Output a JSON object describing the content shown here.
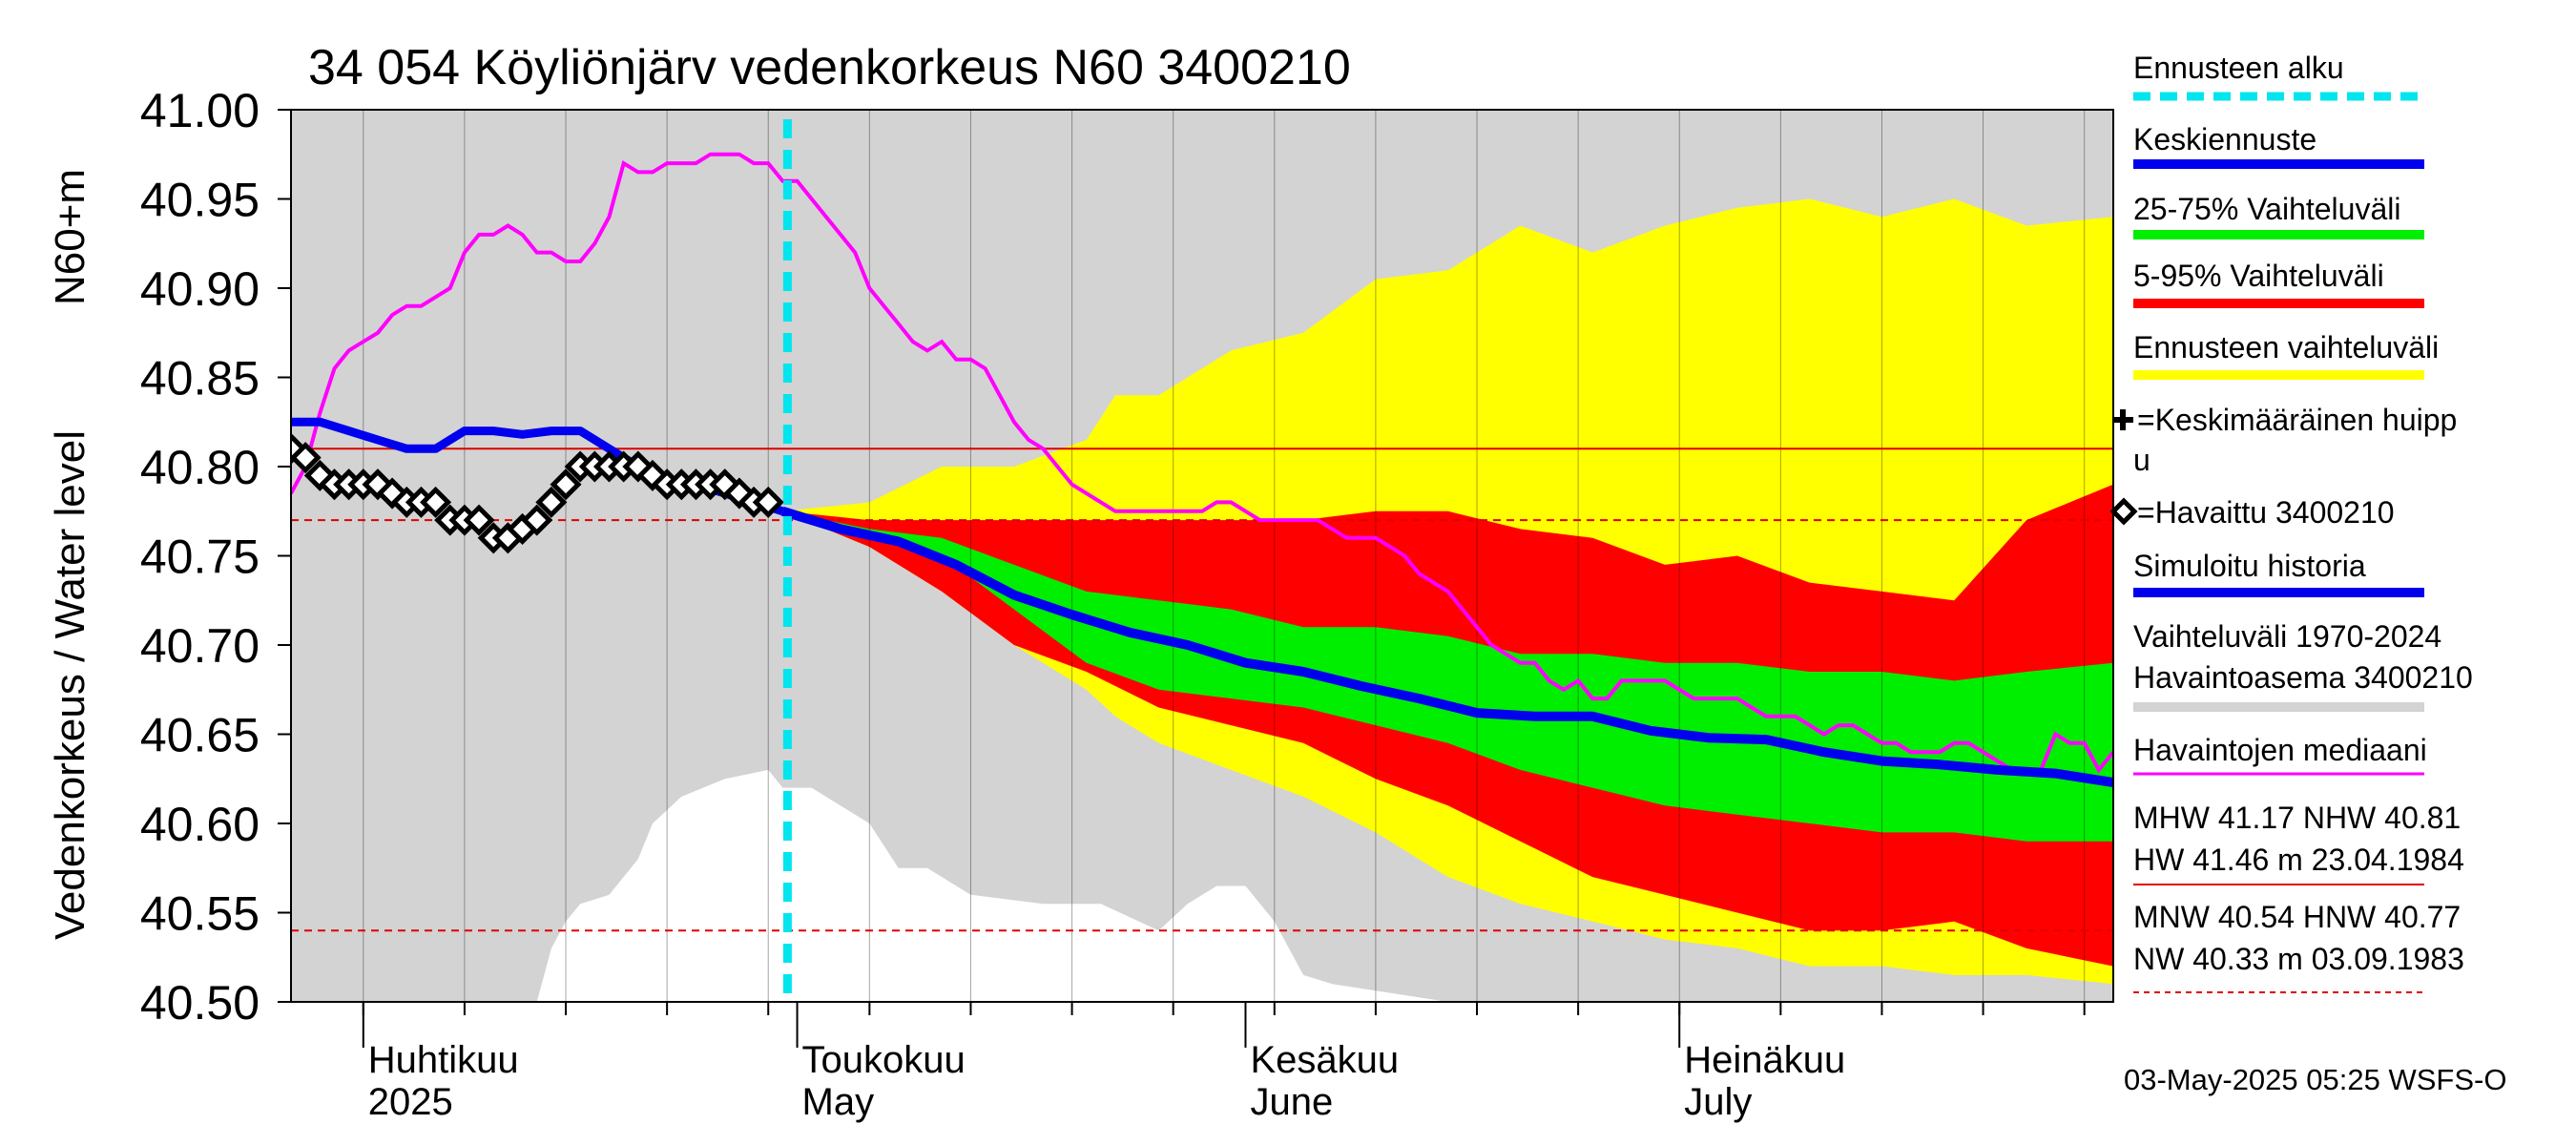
{
  "chart_data": {
    "type": "area",
    "title": "34 054 Köyliönjärv vedenkorkeus N60 3400210",
    "ylabel_lines": [
      "Vedenkorkeus / Water level",
      "N60+m"
    ],
    "ylim": [
      40.5,
      41.0
    ],
    "yticks": [
      "41.00",
      "40.95",
      "40.90",
      "40.85",
      "40.80",
      "40.75",
      "40.70",
      "40.65",
      "40.60",
      "40.55",
      "40.50"
    ],
    "x_axis": {
      "start": "2025-03-27",
      "end": "2025-07-31",
      "months": [
        {
          "date": "2025-04-01",
          "label_fi": "Huhtikuu",
          "label_en": "2025"
        },
        {
          "date": "2025-05-01",
          "label_fi": "Toukokuu",
          "label_en": "May"
        },
        {
          "date": "2025-06-01",
          "label_fi": "Kesäkuu",
          "label_en": "June"
        },
        {
          "date": "2025-07-01",
          "label_fi": "Heinäkuu",
          "label_en": "July"
        }
      ]
    },
    "forecast_start": "2025-04-30",
    "reference_lines": [
      {
        "name": "NHW",
        "value": 40.81,
        "style": "solid",
        "color": "#e00000"
      },
      {
        "name": "HNW",
        "value": 40.77,
        "style": "dashed",
        "color": "#e00000"
      },
      {
        "name": "MNW",
        "value": 40.54,
        "style": "dashed",
        "color": "#e00000"
      }
    ],
    "historical_range": {
      "color": "#d3d3d3",
      "day": [
        0,
        5,
        10,
        15,
        20,
        25,
        30,
        35,
        40,
        45,
        50,
        55,
        60,
        65,
        70,
        75,
        80,
        85,
        90,
        95,
        100,
        105,
        110,
        115,
        120,
        126
      ],
      "upper": [
        41.0,
        41.0,
        41.0,
        41.0,
        41.0,
        41.0,
        41.0,
        41.0,
        41.0,
        41.0,
        41.0,
        41.0,
        41.0,
        41.0,
        41.0,
        41.0,
        41.0,
        41.0,
        41.0,
        41.0,
        41.0,
        41.0,
        41.0,
        41.0,
        41.0,
        41.0
      ],
      "lower": [
        40.5,
        40.5,
        40.5,
        40.5,
        40.5,
        40.5,
        40.5,
        40.5,
        40.5,
        40.5,
        40.5,
        40.5,
        40.5,
        40.5,
        40.5,
        40.5,
        40.5,
        40.5,
        40.5,
        40.5,
        40.5,
        40.5,
        40.5,
        40.5,
        40.5,
        40.5
      ],
      "white_gap": {
        "day": [
          17,
          18,
          19,
          20,
          22,
          24,
          25,
          27,
          30,
          33,
          34,
          36,
          40,
          42,
          44,
          47,
          52,
          56,
          60,
          62,
          64,
          66,
          68,
          70,
          72,
          76,
          80
        ],
        "top": [
          40.5,
          40.53,
          40.545,
          40.555,
          40.56,
          40.58,
          40.6,
          40.615,
          40.625,
          40.63,
          40.62,
          40.62,
          40.6,
          40.575,
          40.575,
          40.56,
          40.555,
          40.555,
          40.54,
          40.555,
          40.565,
          40.565,
          40.545,
          40.515,
          40.51,
          40.505,
          40.5
        ]
      }
    },
    "forecast_bands": [
      {
        "name": "Ennusteen vaihteluväli",
        "color": "#ffff00",
        "day": [
          34,
          40,
          45,
          50,
          55,
          57,
          60,
          65,
          70,
          75,
          80,
          85,
          90,
          95,
          100,
          105,
          110,
          115,
          120,
          126
        ],
        "upper": [
          40.775,
          40.78,
          40.8,
          40.8,
          40.815,
          40.84,
          40.84,
          40.865,
          40.875,
          40.905,
          40.91,
          40.935,
          40.92,
          40.935,
          40.945,
          40.95,
          40.94,
          40.95,
          40.935,
          40.94
        ],
        "lower": [
          40.775,
          40.755,
          40.73,
          40.7,
          40.675,
          40.66,
          40.645,
          40.63,
          40.615,
          40.595,
          40.57,
          40.555,
          40.545,
          40.535,
          40.53,
          40.52,
          40.52,
          40.515,
          40.515,
          40.51
        ]
      },
      {
        "name": "5-95% Vaihteluväli",
        "color": "#ff0000",
        "day": [
          34,
          40,
          45,
          50,
          55,
          60,
          65,
          70,
          75,
          80,
          85,
          90,
          95,
          100,
          105,
          110,
          115,
          120,
          126
        ],
        "upper": [
          40.775,
          40.77,
          40.77,
          40.77,
          40.77,
          40.77,
          40.77,
          40.77,
          40.775,
          40.775,
          40.765,
          40.76,
          40.745,
          40.75,
          40.735,
          40.73,
          40.725,
          40.77,
          40.79
        ],
        "lower": [
          40.775,
          40.755,
          40.73,
          40.7,
          40.685,
          40.665,
          40.655,
          40.645,
          40.625,
          40.61,
          40.59,
          40.57,
          40.56,
          40.55,
          40.54,
          40.54,
          40.545,
          40.53,
          40.52
        ]
      },
      {
        "name": "25-75% Vaihteluväli",
        "color": "#00ee00",
        "day": [
          34,
          40,
          45,
          50,
          55,
          60,
          65,
          70,
          75,
          80,
          85,
          90,
          95,
          100,
          105,
          110,
          115,
          120,
          126
        ],
        "upper": [
          40.775,
          40.765,
          40.76,
          40.745,
          40.73,
          40.725,
          40.72,
          40.71,
          40.71,
          40.705,
          40.695,
          40.695,
          40.69,
          40.69,
          40.685,
          40.685,
          40.68,
          40.685,
          40.69
        ],
        "lower": [
          40.775,
          40.76,
          40.75,
          40.72,
          40.69,
          40.675,
          40.67,
          40.665,
          40.655,
          40.645,
          40.63,
          40.62,
          40.61,
          40.605,
          40.6,
          40.595,
          40.595,
          40.59,
          40.59
        ]
      }
    ],
    "series": [
      {
        "name": "Havaintojen mediaani",
        "color": "#ff00ff",
        "day": [
          0,
          1,
          2,
          3,
          4,
          5,
          6,
          7,
          8,
          9,
          10,
          11,
          12,
          13,
          14,
          15,
          16,
          17,
          18,
          19,
          20,
          21,
          22,
          23,
          24,
          25,
          26,
          27,
          28,
          29,
          30,
          31,
          32,
          33,
          34,
          35,
          36,
          37,
          38,
          39,
          40,
          41,
          42,
          43,
          44,
          45,
          46,
          47,
          48,
          49,
          50,
          51,
          52,
          53,
          54,
          55,
          56,
          57,
          58,
          59,
          60,
          61,
          62,
          63,
          64,
          65,
          66,
          67,
          68,
          69,
          70,
          71,
          72,
          73,
          74,
          75,
          76,
          77,
          78,
          79,
          80,
          81,
          82,
          83,
          84,
          85,
          86,
          87,
          88,
          89,
          90,
          91,
          92,
          93,
          94,
          95,
          96,
          97,
          98,
          99,
          100,
          101,
          102,
          103,
          104,
          105,
          106,
          107,
          108,
          109,
          110,
          111,
          112,
          113,
          114,
          115,
          116,
          117,
          118,
          119,
          120,
          121,
          122,
          123,
          124,
          125,
          126
        ],
        "values": [
          40.785,
          40.8,
          40.83,
          40.855,
          40.865,
          40.87,
          40.875,
          40.885,
          40.89,
          40.89,
          40.895,
          40.9,
          40.92,
          40.93,
          40.93,
          40.935,
          40.93,
          40.92,
          40.92,
          40.915,
          40.915,
          40.925,
          40.94,
          40.97,
          40.965,
          40.965,
          40.97,
          40.97,
          40.97,
          40.975,
          40.975,
          40.975,
          40.97,
          40.97,
          40.96,
          40.96,
          40.95,
          40.94,
          40.93,
          40.92,
          40.9,
          40.89,
          40.88,
          40.87,
          40.865,
          40.87,
          40.86,
          40.86,
          40.855,
          40.84,
          40.825,
          40.815,
          40.81,
          40.8,
          40.79,
          40.785,
          40.78,
          40.775,
          40.775,
          40.775,
          40.775,
          40.775,
          40.775,
          40.775,
          40.78,
          40.78,
          40.775,
          40.77,
          40.77,
          40.77,
          40.77,
          40.77,
          40.765,
          40.76,
          40.76,
          40.76,
          40.755,
          40.75,
          40.74,
          40.735,
          40.73,
          40.72,
          40.71,
          40.7,
          40.695,
          40.69,
          40.69,
          40.68,
          40.675,
          40.68,
          40.67,
          40.67,
          40.68,
          40.68,
          40.68,
          40.68,
          40.675,
          40.67,
          40.67,
          40.67,
          40.67,
          40.665,
          40.66,
          40.66,
          40.66,
          40.655,
          40.65,
          40.655,
          40.655,
          40.65,
          40.645,
          40.645,
          40.64,
          40.64,
          40.64,
          40.645,
          40.645,
          40.64,
          40.635,
          40.63,
          40.63,
          40.63,
          40.65,
          40.645,
          40.645,
          40.63,
          40.64
        ]
      },
      {
        "name": "Simuloitu historia",
        "color": "#0000ee",
        "day": [
          0,
          2,
          4,
          6,
          8,
          9,
          10,
          12,
          14,
          16,
          18,
          20,
          22,
          24,
          26,
          28,
          30,
          32,
          34
        ],
        "values": [
          40.825,
          40.825,
          40.82,
          40.815,
          40.81,
          40.81,
          40.81,
          40.82,
          40.82,
          40.818,
          40.82,
          40.82,
          40.81,
          40.8,
          40.793,
          40.79,
          40.785,
          40.78,
          40.775
        ]
      },
      {
        "name": "Keskiennuste",
        "color": "#0000ee",
        "day": [
          34,
          38,
          42,
          46,
          50,
          54,
          58,
          62,
          66,
          70,
          74,
          78,
          82,
          86,
          90,
          94,
          98,
          102,
          106,
          110,
          114,
          118,
          122,
          126
        ],
        "values": [
          40.775,
          40.765,
          40.758,
          40.745,
          40.728,
          40.717,
          40.707,
          40.7,
          40.69,
          40.685,
          40.677,
          40.67,
          40.662,
          40.66,
          40.66,
          40.652,
          40.648,
          40.647,
          40.64,
          40.635,
          40.633,
          40.63,
          40.628,
          40.623
        ]
      },
      {
        "name": "Havaittu 3400210",
        "color": "#000000",
        "day": [
          0,
          1,
          2,
          3,
          4,
          5,
          6,
          7,
          8,
          9,
          10,
          11,
          12,
          13,
          14,
          15,
          16,
          17,
          18,
          19,
          20,
          21,
          22,
          23,
          24,
          25,
          26,
          27,
          28,
          29,
          30,
          31,
          32,
          33
        ],
        "values": [
          40.81,
          40.805,
          40.795,
          40.79,
          40.79,
          40.79,
          40.79,
          40.785,
          40.78,
          40.78,
          40.78,
          40.77,
          40.77,
          40.77,
          40.76,
          40.76,
          40.765,
          40.77,
          40.78,
          40.79,
          40.8,
          40.8,
          40.8,
          40.8,
          40.8,
          40.795,
          40.79,
          40.79,
          40.79,
          40.79,
          40.79,
          40.785,
          40.78,
          40.78
        ]
      }
    ],
    "grid": true
  },
  "legend": {
    "items": [
      {
        "label": "Ennusteen alku",
        "color": "#00e5ee",
        "kind": "dashed"
      },
      {
        "label": "Keskiennuste",
        "color": "#0000ee",
        "kind": "thick"
      },
      {
        "label": "25-75% Vaihteluväli",
        "color": "#00ee00",
        "kind": "thick"
      },
      {
        "label": "5-95% Vaihteluväli",
        "color": "#ff0000",
        "kind": "thick"
      },
      {
        "label": "Ennusteen vaihteluväli",
        "color": "#ffff00",
        "kind": "thick"
      },
      {
        "label_line1": "=Keskimääräinen huipp",
        "label_line2": "u",
        "kind": "plus"
      },
      {
        "label": "=Havaittu 3400210",
        "kind": "diamond"
      },
      {
        "label": "Simuloitu historia",
        "color": "#0000ee",
        "kind": "thick"
      },
      {
        "label_line1": "Vaihteluväli 1970-2024",
        "label_line2": " Havaintoasema 3400210",
        "color": "#d3d3d3",
        "kind": "thick"
      },
      {
        "label": "Havaintojen mediaani",
        "color": "#ff00ff",
        "kind": "thin"
      }
    ],
    "stats": {
      "line1": "MHW  41.17 NHW  40.81",
      "line2": "HW  41.46 m 23.04.1984",
      "line3": "MNW  40.54 HNW  40.77",
      "line4": "NW  40.33 m 03.09.1983"
    },
    "footer": "03-May-2025 05:25 WSFS-O"
  }
}
